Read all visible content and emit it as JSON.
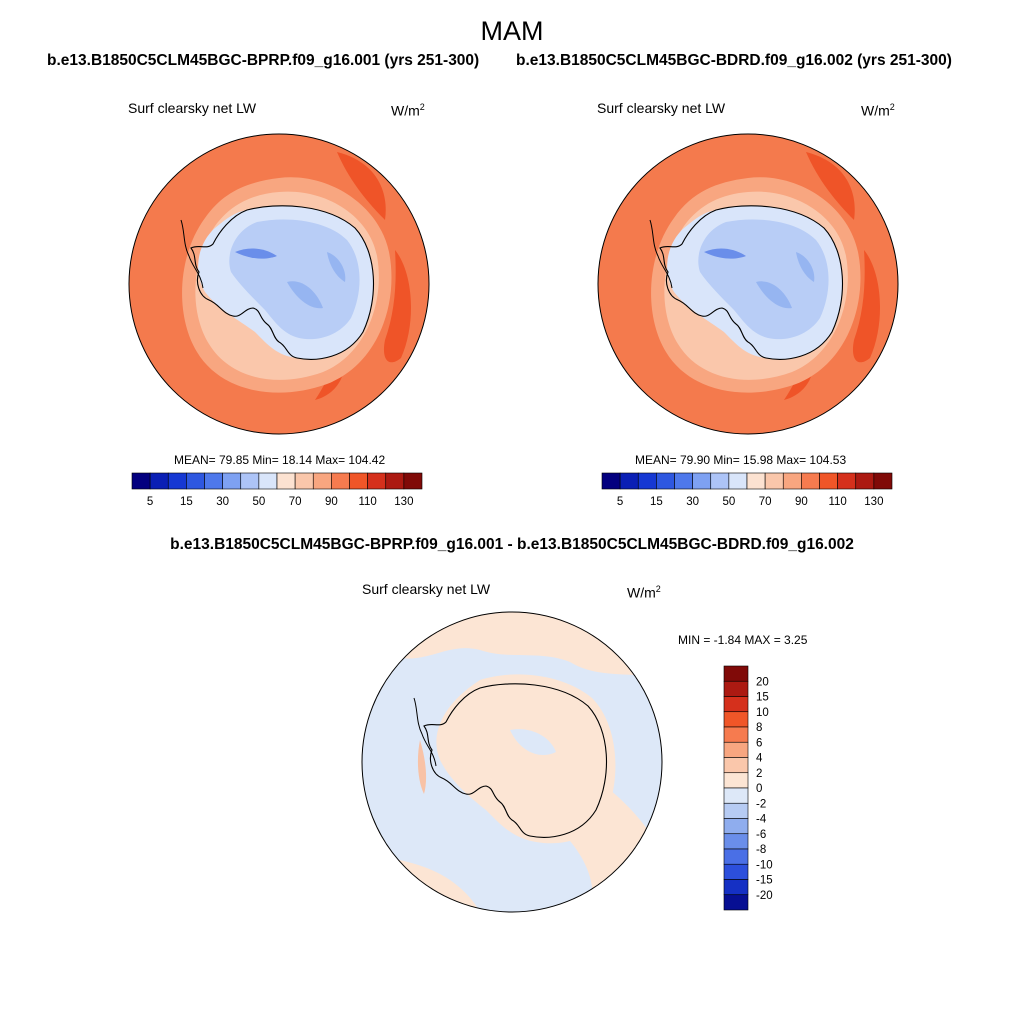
{
  "page": {
    "season": "MAM",
    "case1_title": "b.e13.B1850C5CLM45BGC-BPRP.f09_g16.001 (yrs 251-300)",
    "case2_title": "b.e13.B1850C5CLM45BGC-BDRD.f09_g16.002 (yrs 251-300)",
    "diff_title": "b.e13.B1850C5CLM45BGC-BPRP.f09_g16.001 - b.e13.B1850C5CLM45BGC-BDRD.f09_g16.002"
  },
  "chart_data": [
    {
      "type": "heatmap",
      "projection": "south-polar-stereographic",
      "variable": "Surf clearsky net LW",
      "units_base": "W/m",
      "units_exp": "2",
      "stats_text": "MEAN=  79.85  Min=  18.14  Max= 104.42",
      "stats": {
        "mean": 79.85,
        "min": 18.14,
        "max": 104.42
      },
      "levels": [
        "5",
        "15",
        "30",
        "50",
        "70",
        "90",
        "110",
        "130"
      ],
      "colors": [
        "#03007f",
        "#0a1fb5",
        "#1638d3",
        "#2e57e0",
        "#4e78eb",
        "#7ea1f2",
        "#adc4f7",
        "#d9e5fa",
        "#fce2d1",
        "#fac7ab",
        "#f8a680",
        "#f67b4f",
        "#f05628",
        "#d5301c",
        "#ac1a12",
        "#800a08"
      ]
    },
    {
      "type": "heatmap",
      "projection": "south-polar-stereographic",
      "variable": "Surf clearsky net LW",
      "units_base": "W/m",
      "units_exp": "2",
      "stats_text": "MEAN=  79.90  Min=  15.98  Max= 104.53",
      "stats": {
        "mean": 79.9,
        "min": 15.98,
        "max": 104.53
      },
      "levels": [
        "5",
        "15",
        "30",
        "50",
        "70",
        "90",
        "110",
        "130"
      ],
      "colors": [
        "#03007f",
        "#0a1fb5",
        "#1638d3",
        "#2e57e0",
        "#4e78eb",
        "#7ea1f2",
        "#adc4f7",
        "#d9e5fa",
        "#fce2d1",
        "#fac7ab",
        "#f8a680",
        "#f67b4f",
        "#f05628",
        "#d5301c",
        "#ac1a12",
        "#800a08"
      ]
    },
    {
      "type": "heatmap",
      "projection": "south-polar-stereographic",
      "variable": "Surf clearsky net LW",
      "units_base": "W/m",
      "units_exp": "2",
      "stats_text": "MIN =  -1.84 MAX =   3.25",
      "stats": {
        "min": -1.84,
        "max": 3.25
      },
      "levels": [
        "20",
        "15",
        "10",
        "8",
        "6",
        "4",
        "2",
        "0",
        "-2",
        "-4",
        "-6",
        "-8",
        "-10",
        "-15",
        "-20"
      ],
      "colors": [
        "#800a08",
        "#ac1a12",
        "#d5301c",
        "#f05628",
        "#f67b4f",
        "#f8a680",
        "#fac7ab",
        "#fce5d4",
        "#dde8f8",
        "#b6cbf3",
        "#8fadee",
        "#6a8eea",
        "#4a6fe6",
        "#2c4fdc",
        "#1530c4",
        "#070f93"
      ]
    }
  ],
  "colors": {
    "ocean1": "#f47a4d",
    "ocean1_dark": "#ef5428",
    "shelf1": "#f8a680",
    "shelf2": "#fac7ab",
    "ice_light": "#d9e5fa",
    "ice_mid": "#b8cdf6",
    "ice_blue": "#96b5f1",
    "ice_dark": "#6a8eea",
    "diff_pink": "#fce5d4",
    "diff_blue": "#dde8f8",
    "diff_pink2": "#f8c2a6"
  }
}
